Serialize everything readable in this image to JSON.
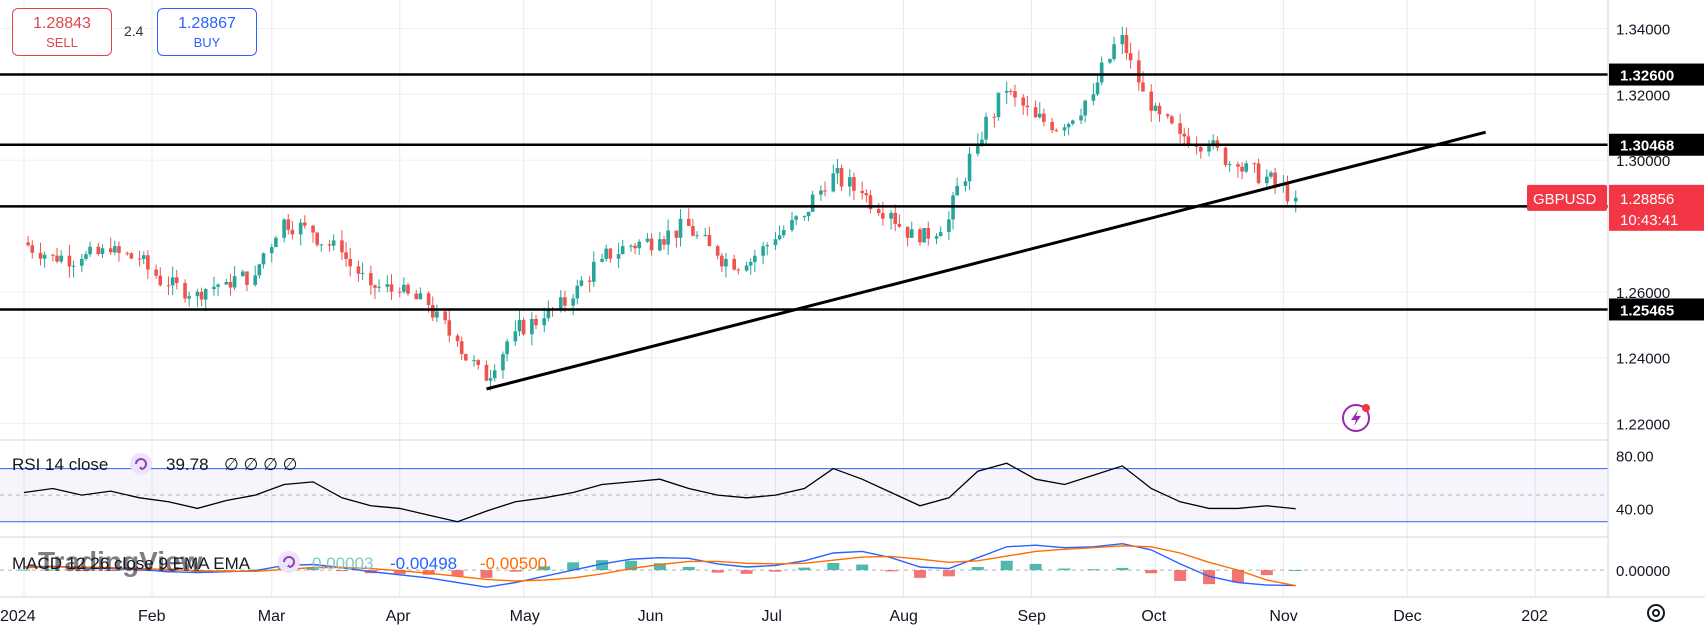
{
  "trade": {
    "sell_price": "1.28843",
    "sell_label": "SELL",
    "spread": "2.4",
    "buy_price": "1.28867",
    "buy_label": "BUY"
  },
  "colors": {
    "up": "#26a69a",
    "down": "#ef5350",
    "rsi": "#000000",
    "macd": "#2962ff",
    "signal": "#ff6d00",
    "symbol_tag": "#f23645"
  },
  "chart_data": {
    "type": "candlestick",
    "symbol": "GBPUSD",
    "last_price": "1.28856",
    "countdown": "10:43:41",
    "ylim": [
      1.215,
      1.345
    ],
    "y_ticks": [
      "1.34000",
      "1.32000",
      "1.30000",
      "1.26000",
      "1.24000",
      "1.22000"
    ],
    "x_ticks": [
      "2024",
      "Feb",
      "Mar",
      "Apr",
      "May",
      "Jun",
      "Jul",
      "Aug",
      "Sep",
      "Oct",
      "Nov",
      "Dec",
      "202"
    ],
    "horizontal_levels": [
      {
        "label": "1.32600",
        "value": 1.326
      },
      {
        "label": "1.30468",
        "value": 1.30468
      },
      {
        "label": "1.28597",
        "value": 1.28597
      },
      {
        "label": "1.25465",
        "value": 1.25465
      }
    ],
    "trendline": {
      "from": {
        "date": "2024-04-22",
        "price": 1.2305
      },
      "to": {
        "date": "2024-12-20",
        "price": 1.3085
      }
    },
    "close_series": [
      {
        "date": "2024-01-01",
        "close": 1.275
      },
      {
        "date": "2024-01-08",
        "close": 1.271
      },
      {
        "date": "2024-01-15",
        "close": 1.27
      },
      {
        "date": "2024-01-22",
        "close": 1.272
      },
      {
        "date": "2024-01-29",
        "close": 1.27
      },
      {
        "date": "2024-02-05",
        "close": 1.262
      },
      {
        "date": "2024-02-12",
        "close": 1.26
      },
      {
        "date": "2024-02-19",
        "close": 1.263
      },
      {
        "date": "2024-02-26",
        "close": 1.265
      },
      {
        "date": "2024-03-04",
        "close": 1.282
      },
      {
        "date": "2024-03-11",
        "close": 1.278
      },
      {
        "date": "2024-03-18",
        "close": 1.272
      },
      {
        "date": "2024-03-25",
        "close": 1.262
      },
      {
        "date": "2024-04-01",
        "close": 1.26
      },
      {
        "date": "2024-04-08",
        "close": 1.256
      },
      {
        "date": "2024-04-15",
        "close": 1.245
      },
      {
        "date": "2024-04-22",
        "close": 1.233
      },
      {
        "date": "2024-04-29",
        "close": 1.248
      },
      {
        "date": "2024-05-06",
        "close": 1.252
      },
      {
        "date": "2024-05-13",
        "close": 1.258
      },
      {
        "date": "2024-05-20",
        "close": 1.27
      },
      {
        "date": "2024-05-27",
        "close": 1.274
      },
      {
        "date": "2024-06-03",
        "close": 1.276
      },
      {
        "date": "2024-06-10",
        "close": 1.28
      },
      {
        "date": "2024-06-17",
        "close": 1.271
      },
      {
        "date": "2024-06-24",
        "close": 1.268
      },
      {
        "date": "2024-07-01",
        "close": 1.276
      },
      {
        "date": "2024-07-08",
        "close": 1.283
      },
      {
        "date": "2024-07-15",
        "close": 1.296
      },
      {
        "date": "2024-07-22",
        "close": 1.29
      },
      {
        "date": "2024-07-29",
        "close": 1.284
      },
      {
        "date": "2024-08-05",
        "close": 1.275
      },
      {
        "date": "2024-08-12",
        "close": 1.282
      },
      {
        "date": "2024-08-19",
        "close": 1.305
      },
      {
        "date": "2024-08-26",
        "close": 1.321
      },
      {
        "date": "2024-09-02",
        "close": 1.313
      },
      {
        "date": "2024-09-09",
        "close": 1.31
      },
      {
        "date": "2024-09-16",
        "close": 1.32
      },
      {
        "date": "2024-09-23",
        "close": 1.338
      },
      {
        "date": "2024-09-30",
        "close": 1.315
      },
      {
        "date": "2024-10-07",
        "close": 1.308
      },
      {
        "date": "2024-10-14",
        "close": 1.305
      },
      {
        "date": "2024-10-21",
        "close": 1.298
      },
      {
        "date": "2024-10-28",
        "close": 1.295
      },
      {
        "date": "2024-11-04",
        "close": 1.2886
      }
    ],
    "rsi": {
      "label": "RSI 14 close",
      "value": "39.78",
      "placeholders": "∅ ∅ ∅ ∅",
      "ylim": [
        20,
        90
      ],
      "y_ticks": [
        "80.00",
        "40.00"
      ],
      "band": [
        70,
        30
      ],
      "series": [
        52,
        55,
        50,
        53,
        48,
        45,
        40,
        46,
        50,
        58,
        60,
        48,
        42,
        40,
        35,
        30,
        38,
        45,
        48,
        52,
        58,
        60,
        62,
        55,
        50,
        48,
        50,
        55,
        70,
        62,
        52,
        42,
        48,
        68,
        74,
        62,
        58,
        65,
        72,
        55,
        45,
        40,
        40,
        42,
        39.78
      ]
    },
    "macd": {
      "label": "MACD 12 26 close 9 EMA EMA",
      "value_hist": "0.00003",
      "value_macd": "-0.00498",
      "value_signal": "-0.00500",
      "ylim": [
        -0.008,
        0.01
      ],
      "y_ticks": [
        "0.00000"
      ],
      "macd_series": [
        0.001,
        0.0012,
        0.0008,
        0.0005,
        0.0002,
        -0.0005,
        -0.0008,
        -0.0005,
        -0.0002,
        0.0015,
        0.0018,
        0.0008,
        -0.0005,
        -0.0015,
        -0.0025,
        -0.004,
        -0.0055,
        -0.004,
        -0.002,
        0,
        0.002,
        0.0035,
        0.004,
        0.0038,
        0.002,
        0.001,
        0.0015,
        0.003,
        0.0055,
        0.006,
        0.004,
        0.001,
        0.0005,
        0.004,
        0.0075,
        0.008,
        0.0072,
        0.0075,
        0.0085,
        0.0065,
        0.002,
        -0.002,
        -0.004,
        -0.0048,
        -0.00498
      ],
      "signal_series": [
        0.0008,
        0.001,
        0.001,
        0.0008,
        0.0005,
        0.0002,
        -0.0002,
        -0.0004,
        -0.0004,
        0.0002,
        0.0008,
        0.0009,
        0.0005,
        -0.0002,
        -0.001,
        -0.002,
        -0.003,
        -0.0035,
        -0.0032,
        -0.0025,
        -0.0012,
        0.0005,
        0.0018,
        0.0028,
        0.0028,
        0.0022,
        0.002,
        0.0022,
        0.0032,
        0.0042,
        0.0044,
        0.0035,
        0.0025,
        0.003,
        0.0045,
        0.006,
        0.0067,
        0.0072,
        0.0078,
        0.0075,
        0.0055,
        0.0025,
        0,
        -0.0032,
        -0.005
      ]
    },
    "watermark": "TradingView"
  }
}
